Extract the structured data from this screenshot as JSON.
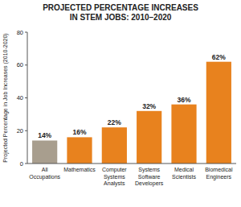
{
  "chart_data": {
    "type": "bar",
    "title": "PROJECTED PERCENTAGE INCREASES\nIN STEM JOBS: 2010–2020",
    "ylabel": "Projected Percentage in Job Increases (2010-2020)",
    "categories": [
      "All\nOccupations",
      "Mathematics",
      "Computer\nSystems\nAnalysts",
      "Systems\nSoftware\nDevelopers",
      "Medical\nScientists",
      "Biomedical\nEngineers"
    ],
    "values": [
      14,
      16,
      22,
      32,
      36,
      62
    ],
    "value_labels": [
      "14%",
      "16%",
      "22%",
      "32%",
      "36%",
      "62%"
    ],
    "data_labels": true,
    "colors": [
      "#a89e8e",
      "#e8821e",
      "#e8821e",
      "#e8821e",
      "#e8821e",
      "#e8821e"
    ],
    "ylim": [
      0,
      80
    ],
    "yticks": [
      0,
      20,
      40,
      60,
      80
    ],
    "grid": false
  }
}
